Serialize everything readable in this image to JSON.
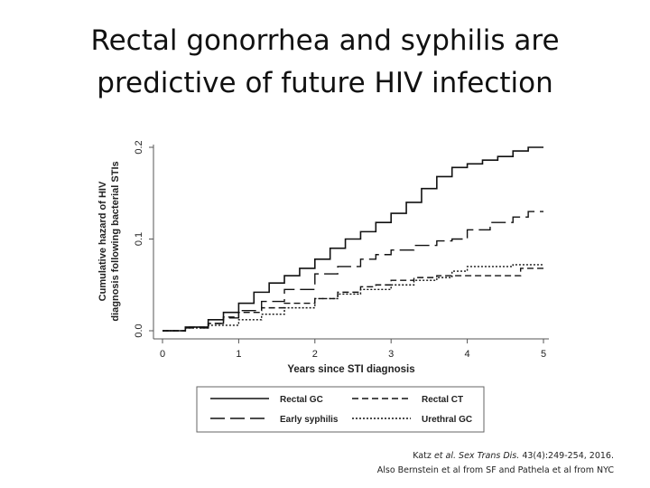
{
  "slide": {
    "title_line1": "Rectal gonorrhea and syphilis are",
    "title_line2": "predictive of future HIV infection"
  },
  "citation": {
    "authors": "Katz",
    "et_al": "et al.",
    "journal": "Sex Trans Dis.",
    "details": "43(4):249-254, 2016.",
    "line2": "Also Bernstein et al from SF and Pathela et al from NYC"
  },
  "chart_data": {
    "type": "line",
    "subtype": "step",
    "xlabel": "Years since STI diagnosis",
    "ylabel_line1": "Cumulative hazard of HIV",
    "ylabel_line2": "diagnosis following bacterial STIs",
    "xlim": [
      0,
      5
    ],
    "ylim": [
      0,
      0.2
    ],
    "xticks": [
      0,
      1,
      2,
      3,
      4,
      5
    ],
    "yticks": [
      0.0,
      0.1,
      0.2
    ],
    "ytick_labels": [
      "0.0",
      "0.1",
      "0.2"
    ],
    "legend_position": "below",
    "series": [
      {
        "name": "Rectal GC",
        "style": "solid",
        "x": [
          0,
          0.3,
          0.6,
          0.8,
          1.0,
          1.2,
          1.4,
          1.6,
          1.8,
          2.0,
          2.2,
          2.4,
          2.6,
          2.8,
          3.0,
          3.2,
          3.4,
          3.6,
          3.8,
          4.0,
          4.2,
          4.4,
          4.6,
          4.8,
          5.0
        ],
        "y": [
          0,
          0.004,
          0.012,
          0.02,
          0.03,
          0.042,
          0.052,
          0.06,
          0.068,
          0.078,
          0.09,
          0.1,
          0.108,
          0.118,
          0.128,
          0.14,
          0.155,
          0.168,
          0.178,
          0.182,
          0.186,
          0.19,
          0.196,
          0.2,
          0.2
        ]
      },
      {
        "name": "Rectal CT",
        "style": "dashed",
        "x": [
          0,
          0.3,
          0.6,
          0.8,
          1.0,
          1.3,
          1.6,
          2.0,
          2.3,
          2.6,
          2.8,
          3.0,
          3.3,
          3.6,
          4.0,
          4.3,
          4.6,
          4.7,
          5.0
        ],
        "y": [
          0,
          0.004,
          0.008,
          0.015,
          0.02,
          0.025,
          0.03,
          0.035,
          0.042,
          0.048,
          0.05,
          0.055,
          0.058,
          0.06,
          0.06,
          0.06,
          0.06,
          0.068,
          0.068
        ]
      },
      {
        "name": "Early syphilis",
        "style": "longdash",
        "x": [
          0,
          0.3,
          0.6,
          0.8,
          1.0,
          1.3,
          1.6,
          2.0,
          2.3,
          2.6,
          2.8,
          3.0,
          3.3,
          3.6,
          3.8,
          4.0,
          4.3,
          4.6,
          4.8,
          5.0
        ],
        "y": [
          0,
          0.003,
          0.008,
          0.014,
          0.022,
          0.032,
          0.045,
          0.062,
          0.07,
          0.078,
          0.083,
          0.088,
          0.093,
          0.098,
          0.1,
          0.11,
          0.118,
          0.124,
          0.13,
          0.13
        ]
      },
      {
        "name": "Urethral GC",
        "style": "dotted",
        "x": [
          0,
          0.3,
          0.6,
          1.0,
          1.3,
          1.6,
          2.0,
          2.3,
          2.6,
          3.0,
          3.3,
          3.6,
          3.8,
          4.0,
          4.3,
          4.6,
          5.0
        ],
        "y": [
          0,
          0.003,
          0.006,
          0.012,
          0.018,
          0.025,
          0.035,
          0.04,
          0.045,
          0.05,
          0.055,
          0.058,
          0.065,
          0.07,
          0.07,
          0.072,
          0.072
        ]
      }
    ]
  }
}
